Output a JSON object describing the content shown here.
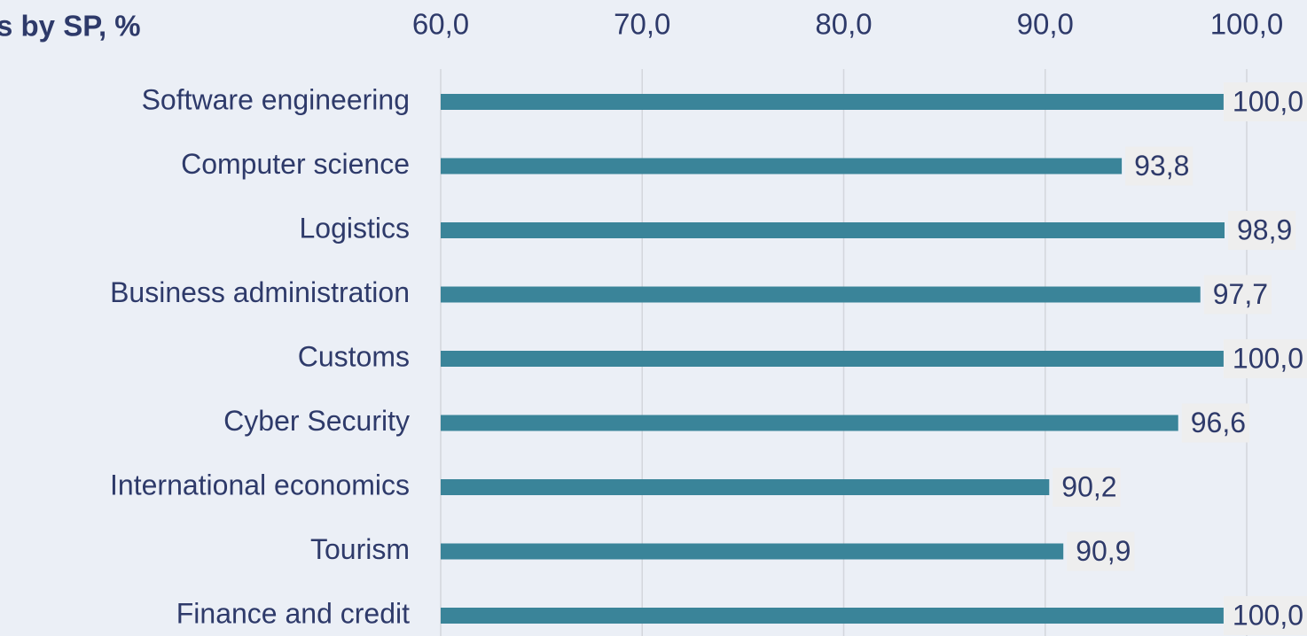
{
  "chart_data": {
    "type": "hbar",
    "title": "s by SP, %",
    "categories": [
      "Software engineering",
      "Computer science",
      "Logistics",
      "Business administration",
      "Customs",
      "Cyber Security",
      "International economics",
      "Tourism",
      "Finance and credit"
    ],
    "values": [
      100.0,
      93.8,
      98.9,
      97.7,
      100.0,
      96.6,
      90.2,
      90.9,
      100.0
    ],
    "value_labels": [
      "100,0",
      "93,8",
      "98,9",
      "97,7",
      "100,0",
      "96,6",
      "90,2",
      "90,9",
      "100,0"
    ],
    "color": "#3a8499",
    "xlim": [
      60,
      100
    ],
    "xticks": [
      {
        "value": 60,
        "label": "60,0"
      },
      {
        "value": 70,
        "label": "70,0"
      },
      {
        "value": 80,
        "label": "80,0"
      },
      {
        "value": 90,
        "label": "90,0"
      },
      {
        "value": 100,
        "label": "100,0"
      }
    ],
    "grid": true
  }
}
